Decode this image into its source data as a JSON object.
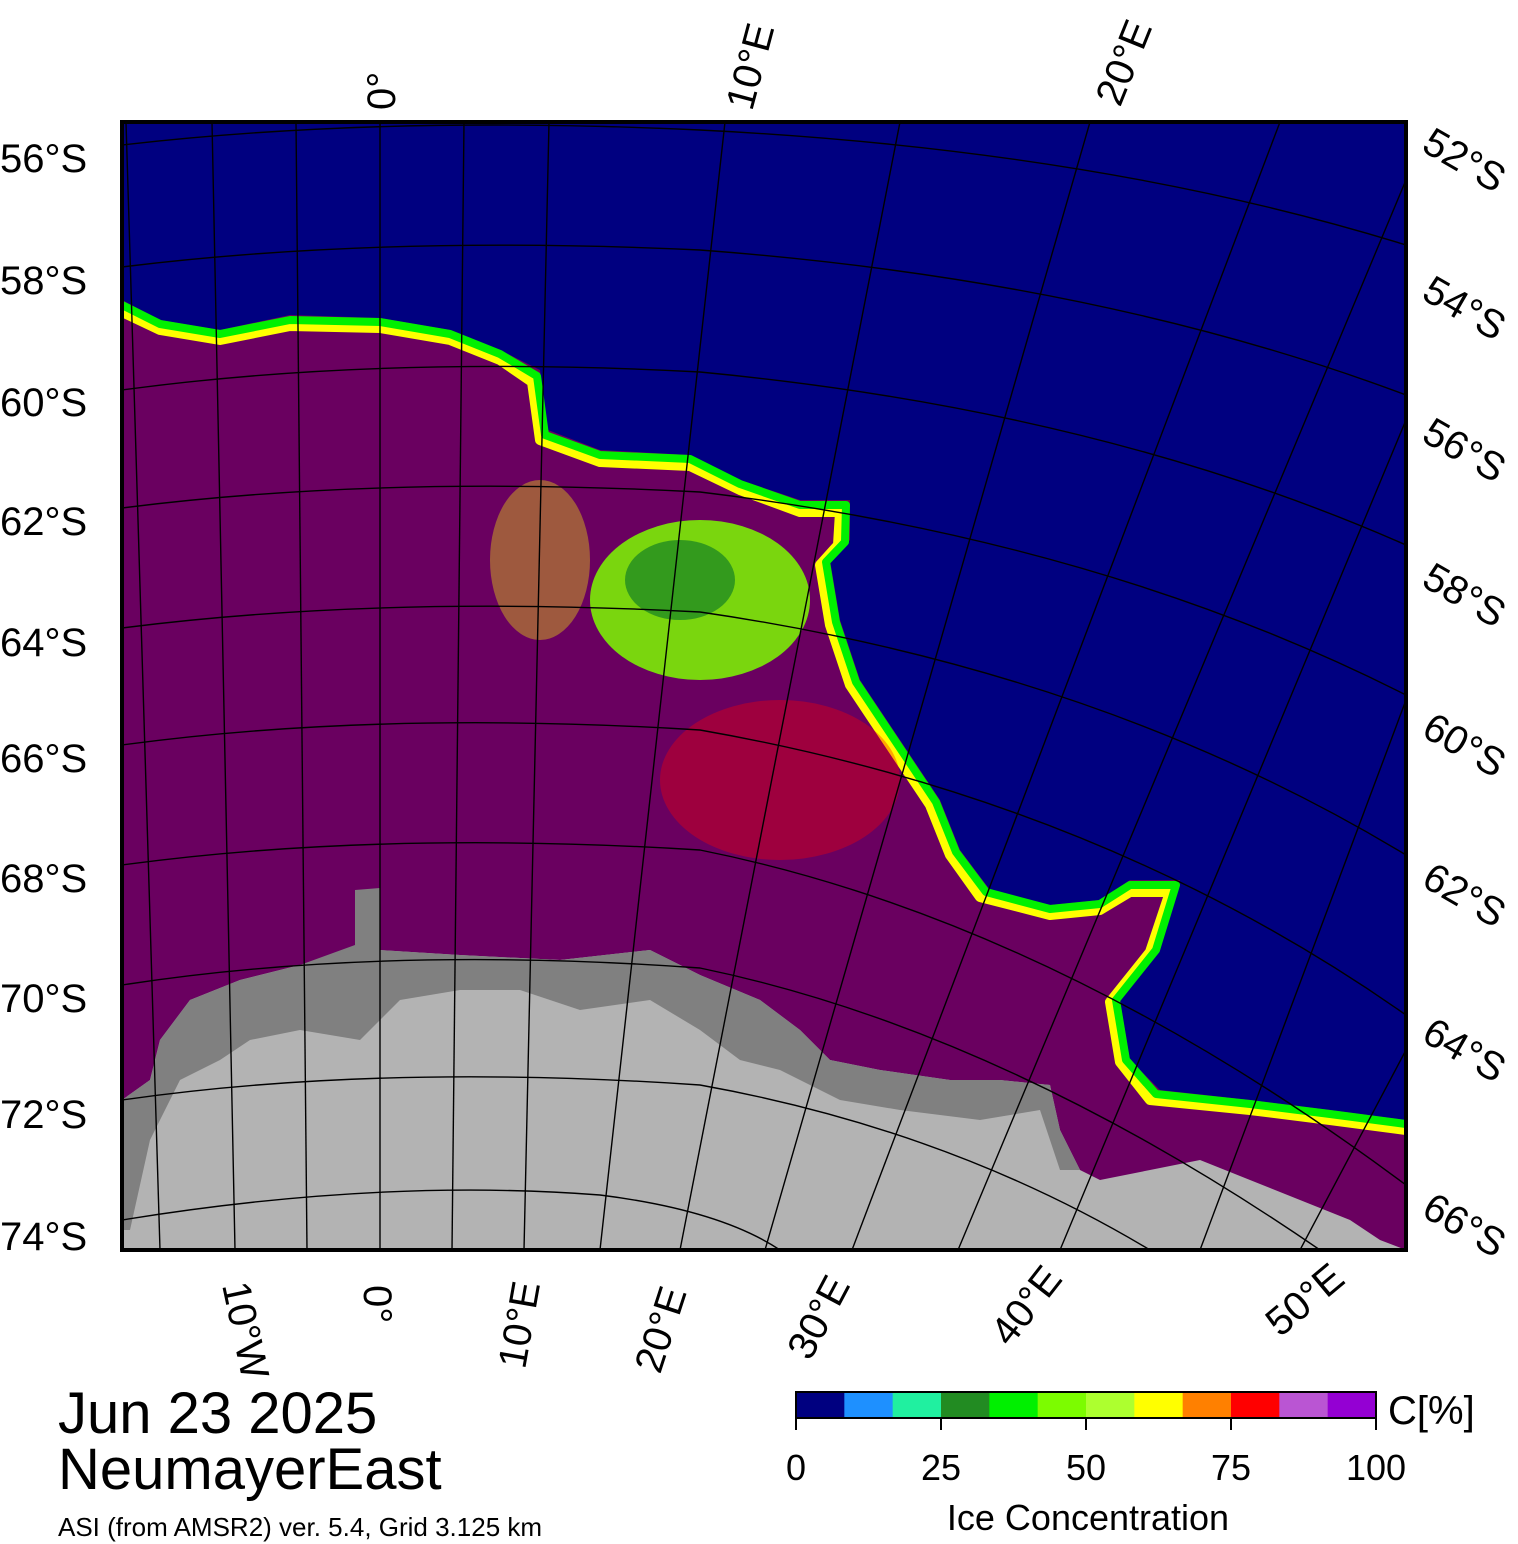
{
  "title": {
    "date": "Jun 23 2025",
    "region": "NeumayerEast",
    "source": "ASI (from AMSR2) ver. 5.4,  Grid 3.125 km"
  },
  "left_lat_labels": [
    "56°S",
    "58°S",
    "60°S",
    "62°S",
    "64°S",
    "66°S",
    "68°S",
    "70°S",
    "72°S",
    "74°S"
  ],
  "right_lat_labels": [
    "52°S",
    "54°S",
    "56°S",
    "58°S",
    "60°S",
    "62°S",
    "64°S",
    "66°S"
  ],
  "top_lon_labels": [
    "0°",
    "10°E",
    "20°E"
  ],
  "bottom_lon_labels": [
    "10°W",
    "0°",
    "10°E",
    "20°E",
    "30°E",
    "40°E",
    "50°E"
  ],
  "legend": {
    "unit": "C[%]",
    "title": "Ice Concentration",
    "ticks": [
      "0",
      "25",
      "50",
      "75",
      "100"
    ],
    "colors": [
      "#000080",
      "#1e90ff",
      "#20f0a0",
      "#228b22",
      "#00f000",
      "#7cfc00",
      "#adff2f",
      "#ffff00",
      "#ff8000",
      "#ff0000",
      "#ba55d3",
      "#9400d3"
    ]
  },
  "colors": {
    "open_water": "#000080",
    "pack_ice": "#6a0060",
    "ice_shelf": "#808080",
    "land": "#b3b3b3"
  }
}
